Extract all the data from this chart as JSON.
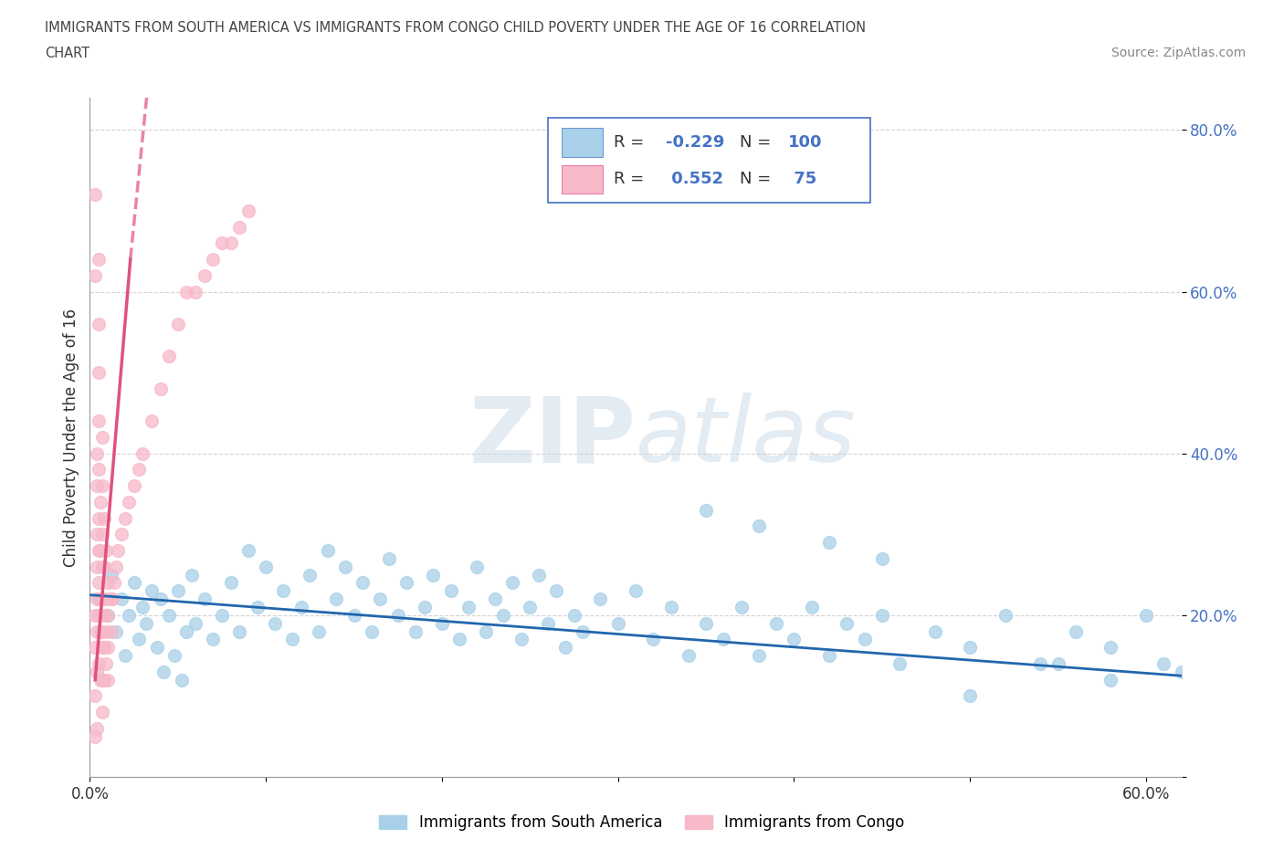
{
  "title_line1": "IMMIGRANTS FROM SOUTH AMERICA VS IMMIGRANTS FROM CONGO CHILD POVERTY UNDER THE AGE OF 16 CORRELATION",
  "title_line2": "CHART",
  "source_text": "Source: ZipAtlas.com",
  "ylabel": "Child Poverty Under the Age of 16",
  "xlim": [
    0.0,
    0.62
  ],
  "ylim": [
    0.0,
    0.84
  ],
  "legend_labels": [
    "Immigrants from South America",
    "Immigrants from Congo"
  ],
  "blue_color": "#a8d0e8",
  "pink_color": "#f7b8c8",
  "blue_line_color": "#2166ac",
  "pink_line_color": "#e05080",
  "R_blue": -0.229,
  "N_blue": 100,
  "R_pink": 0.552,
  "N_pink": 75,
  "watermark_ZIP": "ZIP",
  "watermark_atlas": "atlas",
  "grid_color": "#d0d0d0",
  "background_color": "#ffffff",
  "blue_scatter_x": [
    0.005,
    0.01,
    0.012,
    0.015,
    0.018,
    0.02,
    0.022,
    0.025,
    0.028,
    0.03,
    0.032,
    0.035,
    0.038,
    0.04,
    0.042,
    0.045,
    0.048,
    0.05,
    0.052,
    0.055,
    0.058,
    0.06,
    0.065,
    0.07,
    0.075,
    0.08,
    0.085,
    0.09,
    0.095,
    0.1,
    0.105,
    0.11,
    0.115,
    0.12,
    0.125,
    0.13,
    0.135,
    0.14,
    0.145,
    0.15,
    0.155,
    0.16,
    0.165,
    0.17,
    0.175,
    0.18,
    0.185,
    0.19,
    0.195,
    0.2,
    0.205,
    0.21,
    0.215,
    0.22,
    0.225,
    0.23,
    0.235,
    0.24,
    0.245,
    0.25,
    0.255,
    0.26,
    0.265,
    0.27,
    0.275,
    0.28,
    0.29,
    0.3,
    0.31,
    0.32,
    0.33,
    0.34,
    0.35,
    0.36,
    0.37,
    0.38,
    0.39,
    0.4,
    0.41,
    0.42,
    0.43,
    0.44,
    0.45,
    0.46,
    0.48,
    0.5,
    0.52,
    0.54,
    0.56,
    0.58,
    0.6,
    0.61,
    0.62,
    0.35,
    0.38,
    0.42,
    0.45,
    0.5,
    0.55,
    0.58
  ],
  "blue_scatter_y": [
    0.22,
    0.2,
    0.25,
    0.18,
    0.22,
    0.15,
    0.2,
    0.24,
    0.17,
    0.21,
    0.19,
    0.23,
    0.16,
    0.22,
    0.13,
    0.2,
    0.15,
    0.23,
    0.12,
    0.18,
    0.25,
    0.19,
    0.22,
    0.17,
    0.2,
    0.24,
    0.18,
    0.28,
    0.21,
    0.26,
    0.19,
    0.23,
    0.17,
    0.21,
    0.25,
    0.18,
    0.28,
    0.22,
    0.26,
    0.2,
    0.24,
    0.18,
    0.22,
    0.27,
    0.2,
    0.24,
    0.18,
    0.21,
    0.25,
    0.19,
    0.23,
    0.17,
    0.21,
    0.26,
    0.18,
    0.22,
    0.2,
    0.24,
    0.17,
    0.21,
    0.25,
    0.19,
    0.23,
    0.16,
    0.2,
    0.18,
    0.22,
    0.19,
    0.23,
    0.17,
    0.21,
    0.15,
    0.19,
    0.17,
    0.21,
    0.15,
    0.19,
    0.17,
    0.21,
    0.15,
    0.19,
    0.17,
    0.2,
    0.14,
    0.18,
    0.16,
    0.2,
    0.14,
    0.18,
    0.16,
    0.2,
    0.14,
    0.13,
    0.33,
    0.31,
    0.29,
    0.27,
    0.1,
    0.14,
    0.12
  ],
  "pink_scatter_x": [
    0.003,
    0.003,
    0.003,
    0.003,
    0.003,
    0.004,
    0.004,
    0.004,
    0.004,
    0.004,
    0.004,
    0.004,
    0.005,
    0.005,
    0.005,
    0.005,
    0.005,
    0.005,
    0.005,
    0.005,
    0.005,
    0.005,
    0.006,
    0.006,
    0.006,
    0.006,
    0.006,
    0.007,
    0.007,
    0.007,
    0.007,
    0.007,
    0.007,
    0.007,
    0.007,
    0.007,
    0.008,
    0.008,
    0.008,
    0.008,
    0.008,
    0.009,
    0.009,
    0.009,
    0.009,
    0.01,
    0.01,
    0.01,
    0.01,
    0.012,
    0.012,
    0.013,
    0.014,
    0.015,
    0.016,
    0.018,
    0.02,
    0.022,
    0.025,
    0.028,
    0.03,
    0.035,
    0.04,
    0.045,
    0.05,
    0.055,
    0.06,
    0.065,
    0.07,
    0.075,
    0.08,
    0.085,
    0.09,
    0.003,
    0.004
  ],
  "pink_scatter_y": [
    0.72,
    0.62,
    0.2,
    0.16,
    0.1,
    0.4,
    0.36,
    0.3,
    0.26,
    0.22,
    0.18,
    0.13,
    0.64,
    0.56,
    0.5,
    0.44,
    0.38,
    0.32,
    0.28,
    0.24,
    0.2,
    0.14,
    0.34,
    0.28,
    0.22,
    0.18,
    0.12,
    0.42,
    0.36,
    0.3,
    0.26,
    0.22,
    0.18,
    0.16,
    0.12,
    0.08,
    0.32,
    0.26,
    0.2,
    0.16,
    0.12,
    0.28,
    0.22,
    0.18,
    0.14,
    0.24,
    0.2,
    0.16,
    0.12,
    0.22,
    0.18,
    0.22,
    0.24,
    0.26,
    0.28,
    0.3,
    0.32,
    0.34,
    0.36,
    0.38,
    0.4,
    0.44,
    0.48,
    0.52,
    0.56,
    0.6,
    0.6,
    0.62,
    0.64,
    0.66,
    0.66,
    0.68,
    0.7,
    0.05,
    0.06
  ]
}
